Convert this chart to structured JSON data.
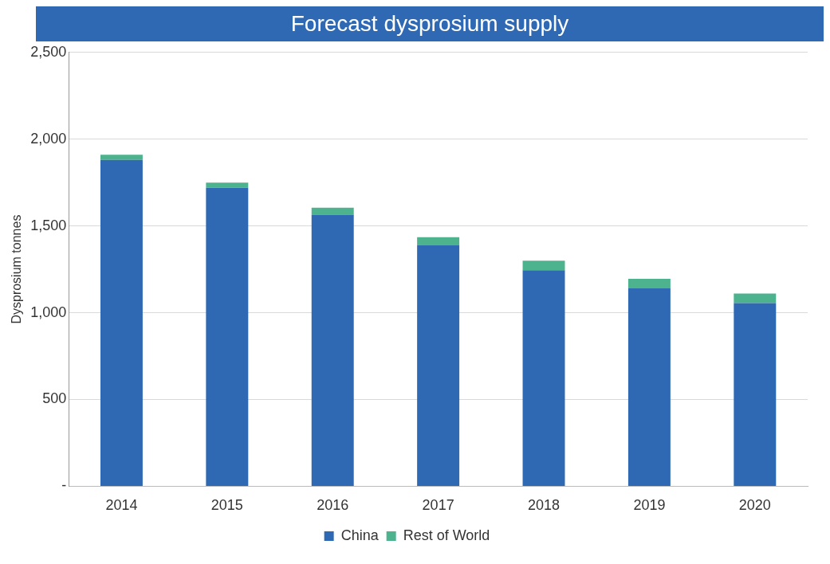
{
  "chart_data": {
    "type": "bar",
    "title": "Forecast dysprosium supply",
    "ylabel": "Dysprosium tonnes",
    "categories": [
      "2014",
      "2015",
      "2016",
      "2017",
      "2018",
      "2019",
      "2020"
    ],
    "series": [
      {
        "name": "China",
        "color": "#2f69b3",
        "values": [
          1880,
          1720,
          1565,
          1390,
          1245,
          1140,
          1055
        ]
      },
      {
        "name": "Rest of World",
        "color": "#4db38f",
        "values": [
          30,
          30,
          40,
          45,
          55,
          55,
          55
        ]
      }
    ],
    "stacked": true,
    "ylim": [
      0,
      2500
    ],
    "yticks": [
      {
        "value": 0,
        "label": "-"
      },
      {
        "value": 500,
        "label": "500"
      },
      {
        "value": 1000,
        "label": "1,000"
      },
      {
        "value": 1500,
        "label": "1,500"
      },
      {
        "value": 2000,
        "label": "2,000"
      },
      {
        "value": 2500,
        "label": "2,500"
      }
    ],
    "grid": "y",
    "legend": "bottom"
  }
}
